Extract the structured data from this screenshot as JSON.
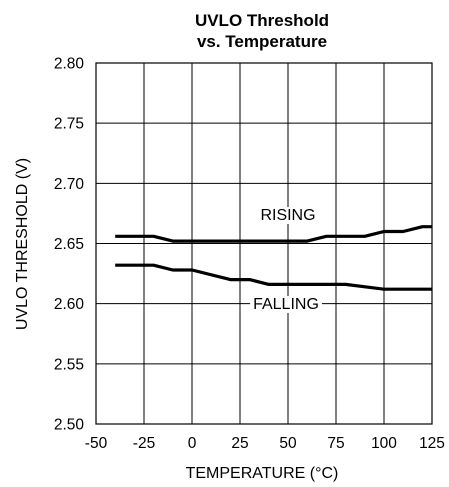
{
  "chart_data": {
    "type": "line",
    "title": [
      "UVLO Threshold",
      "vs. Temperature"
    ],
    "xlabel": "TEMPERATURE (°C)",
    "ylabel": "UVLO THRESHOLD (V)",
    "xlim": [
      -50,
      125
    ],
    "ylim": [
      2.5,
      2.8
    ],
    "xticks": [
      -50,
      -25,
      0,
      25,
      50,
      75,
      100,
      125
    ],
    "xtick_labels": [
      "-50",
      "-25",
      "0",
      "25",
      "50",
      "75",
      "100",
      "125"
    ],
    "yticks": [
      2.5,
      2.55,
      2.6,
      2.65,
      2.7,
      2.75,
      2.8
    ],
    "ytick_labels": [
      "2.50",
      "2.55",
      "2.60",
      "2.65",
      "2.70",
      "2.75",
      "2.80"
    ],
    "grid": true,
    "series": [
      {
        "name": "RISING",
        "x": [
          -40,
          -20,
          -10,
          0,
          25,
          60,
          70,
          90,
          100,
          110,
          120,
          125
        ],
        "y": [
          2.656,
          2.656,
          2.652,
          2.652,
          2.652,
          2.652,
          2.656,
          2.656,
          2.66,
          2.66,
          2.664,
          2.664
        ]
      },
      {
        "name": "FALLING",
        "x": [
          -40,
          -20,
          -10,
          0,
          20,
          30,
          40,
          80,
          100,
          125
        ],
        "y": [
          2.632,
          2.632,
          2.628,
          2.628,
          2.62,
          2.62,
          2.616,
          2.616,
          2.612,
          2.612
        ]
      }
    ]
  }
}
